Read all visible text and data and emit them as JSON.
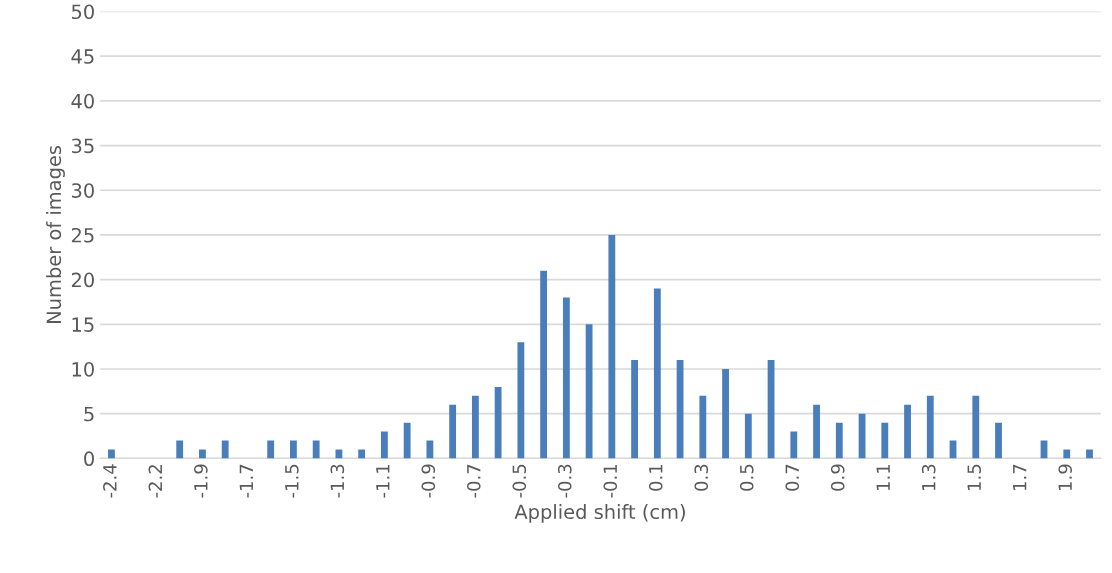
{
  "chart_data": {
    "type": "bar",
    "xlabel": "Applied shift (cm)",
    "ylabel": "Number of images",
    "categories": [
      "-2.4",
      null,
      "-2.2",
      null,
      "-1.9",
      null,
      "-1.7",
      null,
      "-1.5",
      null,
      "-1.3",
      null,
      "-1.1",
      null,
      "-0.9",
      null,
      "-0.7",
      null,
      "-0.5",
      null,
      "-0.3",
      null,
      "-0.1",
      null,
      "0.1",
      null,
      "0.3",
      null,
      "0.5",
      null,
      "0.7",
      null,
      "0.9",
      null,
      "1.1",
      null,
      "1.3",
      null,
      "1.5",
      null,
      "1.7",
      null,
      "1.9",
      null
    ],
    "values": [
      1,
      0,
      0,
      2,
      1,
      2,
      0,
      2,
      2,
      2,
      1,
      1,
      3,
      4,
      2,
      6,
      7,
      8,
      13,
      21,
      18,
      15,
      25,
      11,
      19,
      11,
      7,
      10,
      5,
      11,
      3,
      6,
      4,
      5,
      4,
      6,
      7,
      2,
      7,
      4,
      0,
      2,
      1,
      1
    ],
    "color": "#4a7ebb",
    "ylim": [
      0,
      50
    ],
    "yticks": [
      0,
      5,
      10,
      15,
      20,
      25,
      30,
      35,
      40,
      45,
      50
    ],
    "grid": "y"
  }
}
